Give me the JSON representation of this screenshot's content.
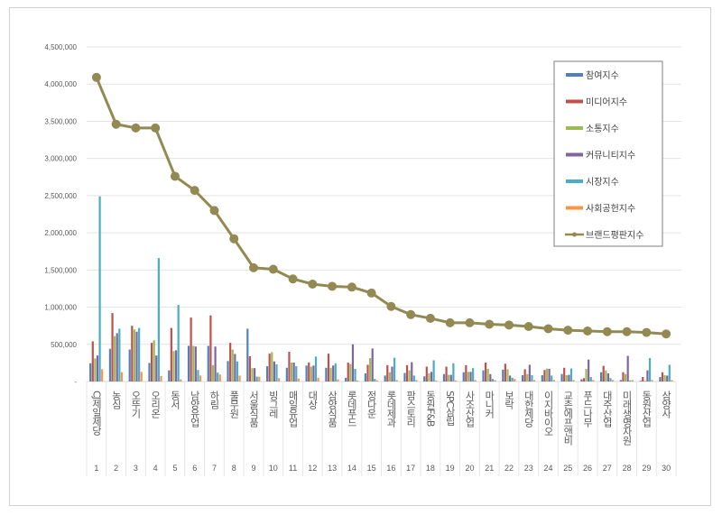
{
  "chart_data": {
    "type": "bar",
    "title": "",
    "xlabel": "",
    "ylabel": "",
    "ylim": [
      0,
      4500000
    ],
    "yticks": [
      "-",
      "500,000",
      "1,000,000",
      "1,500,000",
      "2,000,000",
      "2,500,000",
      "3,000,000",
      "3,500,000",
      "4,000,000",
      "4,500,000"
    ],
    "grid": true,
    "legend_position": "top-right",
    "ranks": [
      "1",
      "2",
      "3",
      "4",
      "5",
      "6",
      "7",
      "8",
      "9",
      "10",
      "11",
      "12",
      "13",
      "14",
      "15",
      "16",
      "17",
      "18",
      "19",
      "20",
      "21",
      "22",
      "23",
      "24",
      "25",
      "26",
      "27",
      "28",
      "29",
      "30"
    ],
    "categories": [
      "CJ제일제당",
      "농심",
      "오뚜기",
      "오리온",
      "동서",
      "남양유업",
      "하림",
      "풀무원",
      "서울식품",
      "빙그레",
      "매일유업",
      "대상",
      "삼양식품",
      "롯데푸드",
      "정다운",
      "롯데제과",
      "팜스토리",
      "동원F&B",
      "SPC삼립",
      "사조산업",
      "마니커",
      "보락",
      "대한제당",
      "이지바이오",
      "교촌에프앤비",
      "푸드나무",
      "대주산업",
      "미래생명자원",
      "동원산업",
      "삼양사"
    ],
    "series": [
      {
        "name": "참여지수",
        "type": "bar",
        "color": "#4f81bd",
        "values": [
          245000,
          440000,
          430000,
          250000,
          150000,
          480000,
          480000,
          275000,
          710000,
          205000,
          185000,
          215000,
          185000,
          50000,
          110000,
          80000,
          115000,
          70000,
          100000,
          125000,
          150000,
          160000,
          85000,
          85000,
          100000,
          30000,
          125000,
          20000,
          10000,
          60000
        ]
      },
      {
        "name": "미디어지수",
        "type": "bar",
        "color": "#c0504d",
        "values": [
          540000,
          920000,
          750000,
          520000,
          720000,
          860000,
          890000,
          520000,
          340000,
          375000,
          400000,
          255000,
          375000,
          255000,
          225000,
          220000,
          220000,
          200000,
          200000,
          220000,
          255000,
          240000,
          165000,
          155000,
          185000,
          45000,
          210000,
          125000,
          60000,
          125000
        ]
      },
      {
        "name": "소통지수",
        "type": "bar",
        "color": "#9bbb59",
        "values": [
          310000,
          610000,
          700000,
          555000,
          410000,
          480000,
          220000,
          430000,
          180000,
          395000,
          255000,
          200000,
          185000,
          235000,
          315000,
          125000,
          150000,
          110000,
          90000,
          130000,
          170000,
          165000,
          100000,
          175000,
          85000,
          170000,
          150000,
          100000,
          10000,
          85000
        ]
      },
      {
        "name": "커뮤니티지수",
        "type": "bar",
        "color": "#8064a2",
        "values": [
          350000,
          650000,
          670000,
          350000,
          420000,
          470000,
          470000,
          370000,
          180000,
          270000,
          255000,
          215000,
          215000,
          500000,
          445000,
          200000,
          260000,
          130000,
          90000,
          130000,
          100000,
          80000,
          225000,
          170000,
          90000,
          295000,
          110000,
          345000,
          150000,
          80000
        ]
      },
      {
        "name": "시장지수",
        "type": "bar",
        "color": "#4bacc6",
        "values": [
          2490000,
          710000,
          720000,
          1660000,
          1030000,
          155000,
          120000,
          270000,
          65000,
          230000,
          205000,
          335000,
          245000,
          170000,
          35000,
          320000,
          80000,
          285000,
          245000,
          180000,
          35000,
          50000,
          85000,
          80000,
          175000,
          60000,
          45000,
          15000,
          315000,
          225000
        ]
      },
      {
        "name": "사회공헌지수",
        "type": "bar",
        "color": "#f79646",
        "values": [
          165000,
          125000,
          130000,
          75000,
          30000,
          80000,
          95000,
          80000,
          65000,
          45000,
          40000,
          50000,
          30000,
          15000,
          15000,
          20000,
          20000,
          15000,
          15000,
          20000,
          20000,
          35000,
          20000,
          20000,
          20000,
          20000,
          20000,
          20000,
          20000,
          20000
        ]
      },
      {
        "name": "브랜드평판지수",
        "type": "line",
        "color": "#938953",
        "values": [
          4090000,
          3460000,
          3410000,
          3410000,
          2760000,
          2570000,
          2300000,
          1920000,
          1530000,
          1510000,
          1380000,
          1310000,
          1280000,
          1270000,
          1190000,
          1010000,
          900000,
          850000,
          790000,
          790000,
          770000,
          760000,
          740000,
          710000,
          690000,
          680000,
          670000,
          670000,
          660000,
          640000
        ]
      }
    ]
  }
}
